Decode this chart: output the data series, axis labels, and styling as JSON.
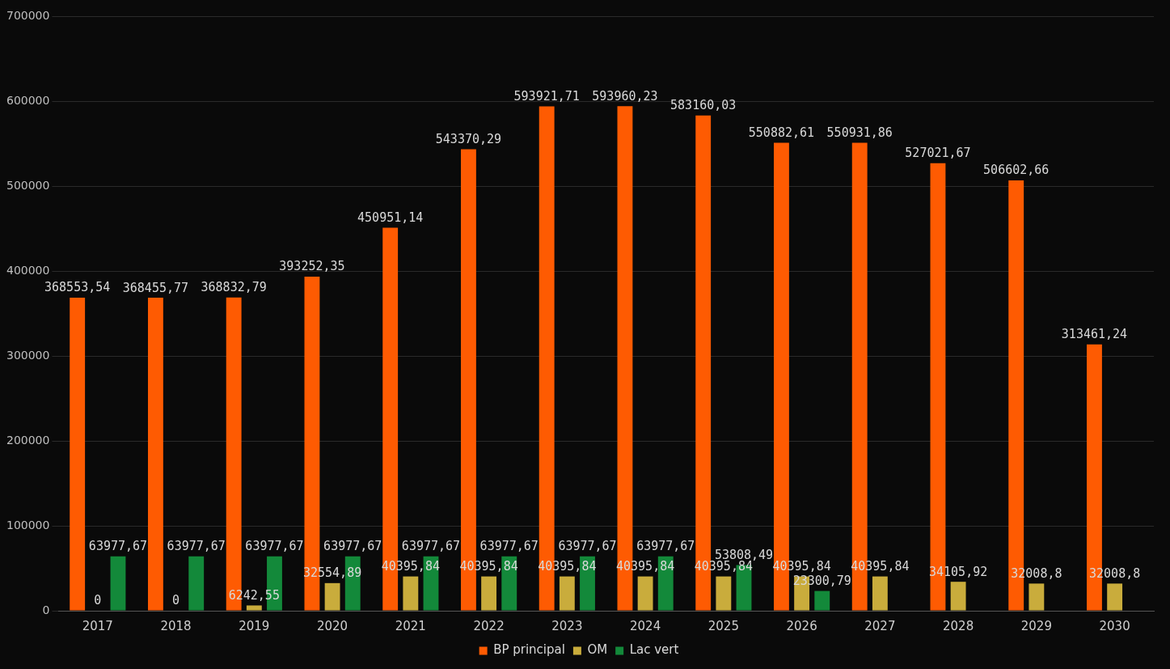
{
  "chart_data": {
    "type": "bar",
    "categories": [
      "2017",
      "2018",
      "2019",
      "2020",
      "2021",
      "2022",
      "2023",
      "2024",
      "2025",
      "2026",
      "2027",
      "2028",
      "2029",
      "2030"
    ],
    "series": [
      {
        "name": "BP principal",
        "color": "#fe5b02",
        "values": [
          368553.54,
          368455.77,
          368832.79,
          393252.35,
          450951.14,
          543370.29,
          593921.71,
          593960.23,
          583160.03,
          550882.61,
          550931.86,
          527021.67,
          506602.66,
          313461.24
        ],
        "value_labels": [
          "368553,54",
          "368455,77",
          "368832,79",
          "393252,35",
          "450951,14",
          "543370,29",
          "593921,71",
          "593960,23",
          "583160,03",
          "550882,61",
          "550931,86",
          "527021,67",
          "506602,66",
          "313461,24"
        ]
      },
      {
        "name": "OM",
        "color": "#c9ac3c",
        "values": [
          0,
          0,
          6242.55,
          32554.89,
          40395.84,
          40395.84,
          40395.84,
          40395.84,
          40395.84,
          40395.84,
          40395.84,
          34105.92,
          32008.8,
          32008.8
        ],
        "value_labels": [
          "0",
          "0",
          "6242,55",
          "32554,89",
          "40395,84",
          "40395,84",
          "40395,84",
          "40395,84",
          "40395,84",
          "40395,84",
          "40395,84",
          "34105,92",
          "32008,8",
          "32008,8"
        ]
      },
      {
        "name": "Lac vert",
        "color": "#13893a",
        "values": [
          63977.67,
          63977.67,
          63977.67,
          63977.67,
          63977.67,
          63977.67,
          63977.67,
          63977.67,
          53808.49,
          23300.79,
          null,
          null,
          null,
          null
        ],
        "value_labels": [
          "63977,67",
          "63977,67",
          "63977,67",
          "63977,67",
          "63977,67",
          "63977,67",
          "63977,67",
          "63977,67",
          "53808,49",
          "23300,79",
          null,
          null,
          null,
          null
        ]
      }
    ],
    "ylim": [
      0,
      700000
    ],
    "yticks": [
      0,
      100000,
      200000,
      300000,
      400000,
      500000,
      600000,
      700000
    ],
    "grid": "y",
    "legend": "bottom"
  }
}
